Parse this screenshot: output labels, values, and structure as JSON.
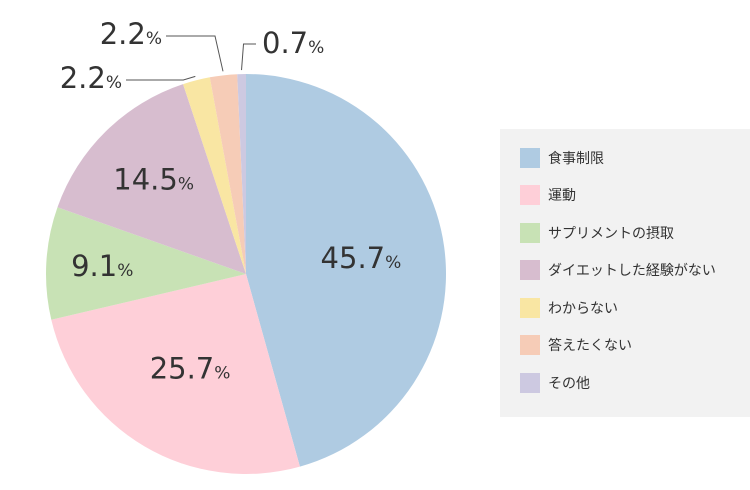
{
  "chart_data": {
    "type": "pie",
    "title": "",
    "unit": "%",
    "start_angle_deg": 0,
    "direction": "clockwise",
    "slices": [
      {
        "label": "食事制限",
        "value": 45.7,
        "display": "45.7",
        "color": "#afcbe2"
      },
      {
        "label": "運動",
        "value": 25.7,
        "display": "25.7",
        "color": "#fecfd8"
      },
      {
        "label": "サプリメントの摂取",
        "value": 9.1,
        "display": "9.1",
        "color": "#c8e2b5"
      },
      {
        "label": "ダイエットした経験がない",
        "value": 14.5,
        "display": "14.5",
        "color": "#d7bdcf"
      },
      {
        "label": "わからない",
        "value": 2.2,
        "display": "2.2",
        "color": "#f9e6a3"
      },
      {
        "label": "答えたくない",
        "value": 2.2,
        "display": "2.2",
        "color": "#f6ccb7"
      },
      {
        "label": "その他",
        "value": 0.7,
        "display": "0.7",
        "color": "#cdc9e1"
      }
    ],
    "legend_position": "right"
  }
}
